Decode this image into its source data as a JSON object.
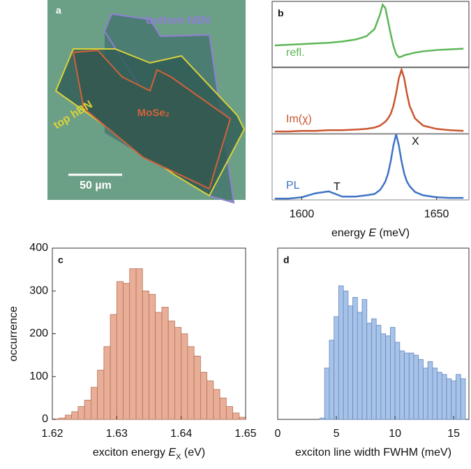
{
  "image_panel": {
    "label": "a",
    "annotations": [
      "bottom hBN",
      "top hBN",
      "MoSe₂",
      "50 µm"
    ]
  },
  "chart_data": [
    {
      "type": "line",
      "title": "b",
      "x": [
        1590,
        1595,
        1600,
        1605,
        1610,
        1615,
        1620,
        1624,
        1627,
        1629,
        1630,
        1631,
        1632,
        1633,
        1634,
        1635,
        1636,
        1637,
        1638,
        1639,
        1640,
        1642,
        1645,
        1650,
        1655,
        1660
      ],
      "xlim": [
        1589,
        1662
      ],
      "ylim": [
        0,
        1
      ],
      "series": [
        {
          "name": "refl.",
          "color": "#5db656",
          "values": [
            0.33,
            0.34,
            0.35,
            0.36,
            0.37,
            0.39,
            0.42,
            0.47,
            0.58,
            0.8,
            0.95,
            0.9,
            0.7,
            0.5,
            0.32,
            0.2,
            0.15,
            0.16,
            0.18,
            0.19,
            0.2,
            0.22,
            0.24,
            0.26,
            0.27,
            0.28
          ]
        }
      ]
    },
    {
      "type": "line",
      "x": [
        1590,
        1595,
        1600,
        1605,
        1610,
        1615,
        1620,
        1624,
        1627,
        1629,
        1630,
        1631,
        1632,
        1633,
        1634,
        1635,
        1636,
        1637,
        1638,
        1639,
        1640,
        1642,
        1645,
        1650,
        1655,
        1660
      ],
      "xlim": [
        1589,
        1662
      ],
      "ylim": [
        0,
        1
      ],
      "series": [
        {
          "name": "Im(χ)",
          "color": "#c9562f",
          "values": [
            0.03,
            0.03,
            0.04,
            0.04,
            0.05,
            0.05,
            0.06,
            0.07,
            0.09,
            0.12,
            0.15,
            0.18,
            0.23,
            0.3,
            0.42,
            0.61,
            0.84,
            0.97,
            0.84,
            0.61,
            0.42,
            0.23,
            0.12,
            0.07,
            0.05,
            0.04
          ]
        }
      ]
    },
    {
      "type": "line",
      "x": [
        1590,
        1595,
        1600,
        1605,
        1610,
        1615,
        1620,
        1624,
        1627,
        1629,
        1630,
        1631,
        1632,
        1633,
        1634,
        1635,
        1636,
        1637,
        1638,
        1639,
        1640,
        1642,
        1645,
        1650,
        1655,
        1660
      ],
      "xlim": [
        1589,
        1662
      ],
      "ylim": [
        0,
        1
      ],
      "xticks": [
        1600,
        1650
      ],
      "xlabel": [
        "energy ",
        "E",
        " (meV)"
      ],
      "annotations": [
        "T",
        "X"
      ],
      "series": [
        {
          "name": "PL",
          "color": "#3f73c6",
          "values": [
            0.02,
            0.02,
            0.04,
            0.1,
            0.13,
            0.05,
            0.05,
            0.07,
            0.09,
            0.15,
            0.21,
            0.28,
            0.4,
            0.59,
            0.83,
            1.0,
            0.83,
            0.59,
            0.4,
            0.28,
            0.21,
            0.12,
            0.07,
            0.04,
            0.03,
            0.03
          ]
        }
      ]
    },
    {
      "type": "histogram",
      "title": "c",
      "color": "#e9ae97",
      "edgecolor": "#b8735a",
      "bins": [
        1.62,
        1.621,
        1.622,
        1.623,
        1.624,
        1.625,
        1.626,
        1.627,
        1.628,
        1.629,
        1.63,
        1.631,
        1.632,
        1.633,
        1.634,
        1.635,
        1.636,
        1.637,
        1.638,
        1.639,
        1.64,
        1.641,
        1.642,
        1.643,
        1.644,
        1.645,
        1.646,
        1.647,
        1.648,
        1.649,
        1.65
      ],
      "values": [
        1,
        3,
        10,
        18,
        30,
        45,
        75,
        115,
        170,
        245,
        322,
        318,
        352,
        352,
        300,
        292,
        250,
        262,
        230,
        215,
        200,
        170,
        148,
        110,
        90,
        70,
        50,
        30,
        15,
        5
      ],
      "xlim": [
        1.62,
        1.65
      ],
      "xticks": [
        {
          "value": 1.62,
          "label": "1.62"
        },
        1.63,
        1.64,
        1.65
      ],
      "ylim": [
        0,
        400
      ],
      "yticks": [
        0,
        100,
        200,
        300,
        400
      ],
      "xlabel": [
        "exciton energy ",
        "E",
        "X",
        " (eV)"
      ],
      "ylabel": "occurrence"
    },
    {
      "type": "histogram",
      "title": "d",
      "color": "#a8c3e8",
      "edgecolor": "#6488c0",
      "bins": [
        3.6,
        4.0,
        4.4,
        4.8,
        5.2,
        5.6,
        6.0,
        6.4,
        6.8,
        7.2,
        7.6,
        8.0,
        8.4,
        8.8,
        9.2,
        9.6,
        10.0,
        10.4,
        10.8,
        11.2,
        11.6,
        12.0,
        12.4,
        12.8,
        13.2,
        13.6,
        14.0,
        14.4,
        14.8,
        15.2,
        15.6,
        16.0
      ],
      "values": [
        3,
        120,
        185,
        240,
        312,
        300,
        265,
        285,
        250,
        280,
        225,
        235,
        220,
        200,
        195,
        215,
        180,
        160,
        155,
        155,
        150,
        140,
        120,
        135,
        120,
        110,
        105,
        95,
        90,
        105,
        95
      ],
      "xlim": [
        0,
        16.3
      ],
      "xticks": [
        0,
        5,
        10,
        15
      ],
      "ylim": [
        0,
        400
      ],
      "xlabel": [
        "exciton line width FWHM (meV)"
      ]
    }
  ]
}
